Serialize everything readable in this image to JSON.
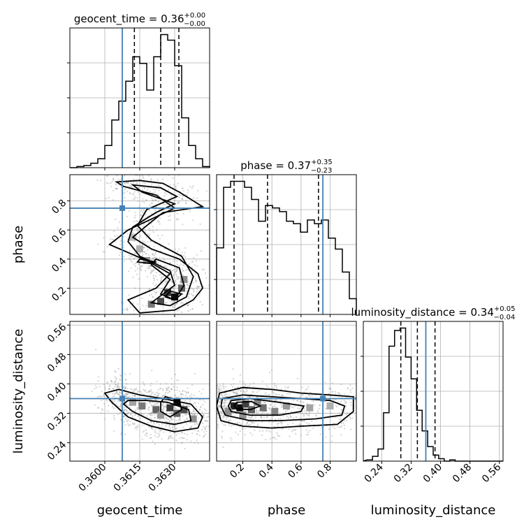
{
  "chart_data": {
    "type": "corner",
    "parameters": [
      {
        "key": "geocent_time",
        "axis_label": "geocent_time",
        "range": [
          0.3585,
          0.3645
        ],
        "ticks": [
          0.36,
          0.3615,
          0.363
        ],
        "tick_labels": [
          "0.3600",
          "0.3615",
          "0.3630"
        ],
        "title_param": "geocent_time",
        "median": "0.36",
        "plus": "+0.00",
        "minus": "−0.00",
        "quantiles": [
          0.36127,
          0.3624,
          0.36318
        ],
        "truth": 0.36075,
        "hist_edges_start": 0.3585,
        "hist_bin_width": 0.0003,
        "hist_counts": [
          0,
          1,
          2,
          4,
          8,
          20,
          43,
          60,
          78,
          100,
          94,
          70,
          100,
          120,
          115,
          92,
          45,
          20,
          8,
          1
        ]
      },
      {
        "key": "phase",
        "axis_label": "phase",
        "range": [
          0.02,
          0.98
        ],
        "ticks": [
          0.2,
          0.4,
          0.6,
          0.8
        ],
        "tick_labels": [
          "0.2",
          "0.4",
          "0.6",
          "0.8"
        ],
        "title_param": "phase",
        "median": "0.37",
        "plus": "+0.35",
        "minus": "−0.23",
        "quantiles": [
          0.14,
          0.37,
          0.72
        ],
        "truth": 0.75,
        "hist_edges_start": 0.02,
        "hist_bin_width": 0.048,
        "hist_counts": [
          55,
          105,
          110,
          110,
          105,
          95,
          77,
          90,
          88,
          85,
          77,
          75,
          68,
          78,
          75,
          78,
          63,
          54,
          35,
          13
        ]
      },
      {
        "key": "luminosity_distance",
        "axis_label": "luminosity_distance",
        "range": [
          0.19,
          0.57
        ],
        "ticks": [
          0.24,
          0.32,
          0.4,
          0.48,
          0.56
        ],
        "tick_labels": [
          "0.24",
          "0.32",
          "0.40",
          "0.48",
          "0.56"
        ],
        "title_param": "luminosity_distance",
        "median": "0.34",
        "plus": "+0.05",
        "minus": "−0.04",
        "quantiles": [
          0.292,
          0.337,
          0.385
        ],
        "truth": 0.36,
        "hist_edges_start": 0.2,
        "hist_bin_width": 0.015,
        "hist_counts": [
          1,
          4,
          10,
          40,
          95,
          108,
          110,
          86,
          68,
          42,
          25,
          12,
          5,
          2,
          0,
          1,
          0,
          0,
          0,
          0,
          0,
          0,
          0,
          0
        ]
      }
    ],
    "truth_color": "#4682b4",
    "grid": true
  }
}
